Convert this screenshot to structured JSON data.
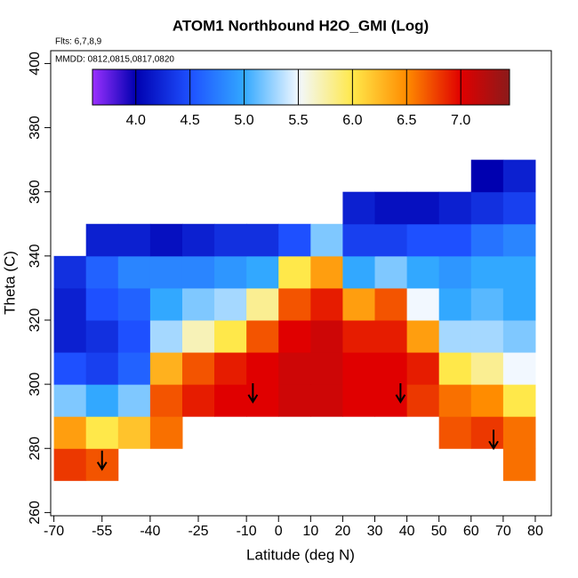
{
  "chart_data": {
    "type": "heatmap",
    "title": "ATOM1 Northbound H2O_GMI (Log)",
    "subtitle": "Flts: 6,7,8,9",
    "annotation": "MMDD: 0812,0815,0817,0820",
    "x_label": "Latitude (deg N)",
    "y_label": "Theta (C)",
    "xlim": [
      -71,
      85
    ],
    "ylim": [
      259,
      404
    ],
    "xticks": [
      -70,
      -55,
      -40,
      -25,
      -10,
      0,
      10,
      20,
      30,
      40,
      50,
      60,
      70,
      80
    ],
    "yticks": [
      260,
      280,
      300,
      320,
      340,
      360,
      380,
      400
    ],
    "x": [
      -65,
      -55,
      -45,
      -35,
      -25,
      -15,
      -5,
      5,
      15,
      25,
      35,
      45,
      55,
      65,
      75
    ],
    "y": [
      275,
      285,
      295,
      305,
      315,
      325,
      335,
      345,
      355,
      365
    ],
    "z": [
      [
        6.8,
        6.7,
        null,
        null,
        null,
        null,
        null,
        null,
        null,
        null,
        null,
        null,
        null,
        null,
        6.6
      ],
      [
        6.4,
        6.0,
        6.2,
        6.6,
        null,
        null,
        null,
        null,
        null,
        null,
        null,
        null,
        6.7,
        6.8,
        6.6
      ],
      [
        5.2,
        5.0,
        5.2,
        6.7,
        6.9,
        7.0,
        7.0,
        7.1,
        7.1,
        7.0,
        7.0,
        6.8,
        6.6,
        6.5,
        6.0
      ],
      [
        4.5,
        4.4,
        4.6,
        6.3,
        6.7,
        6.9,
        7.0,
        7.1,
        7.1,
        7.0,
        7.0,
        6.9,
        6.0,
        5.8,
        5.5
      ],
      [
        4.2,
        4.3,
        4.5,
        5.3,
        5.7,
        6.0,
        6.7,
        7.0,
        7.1,
        6.9,
        6.9,
        6.4,
        5.3,
        5.3,
        5.2
      ],
      [
        4.2,
        4.5,
        4.6,
        5.0,
        5.2,
        5.3,
        5.8,
        6.7,
        6.9,
        6.4,
        6.7,
        5.5,
        5.0,
        5.1,
        5.0
      ],
      [
        4.3,
        4.6,
        4.8,
        4.8,
        4.8,
        4.9,
        5.0,
        6.0,
        6.4,
        5.0,
        5.2,
        5.0,
        4.9,
        5.0,
        5.0
      ],
      [
        null,
        4.2,
        4.2,
        4.1,
        4.2,
        4.3,
        4.3,
        4.5,
        5.2,
        4.4,
        4.4,
        4.5,
        4.5,
        4.7,
        4.8
      ],
      [
        null,
        null,
        null,
        null,
        null,
        null,
        null,
        null,
        null,
        4.2,
        4.1,
        4.1,
        4.2,
        4.3,
        4.4
      ],
      [
        null,
        null,
        null,
        null,
        null,
        null,
        null,
        null,
        null,
        null,
        null,
        null,
        null,
        4.0,
        4.2
      ]
    ],
    "colorbar": {
      "lim": [
        3.6,
        7.45
      ],
      "ticks": [
        {
          "value": 4.0,
          "label": "4.0"
        },
        4.5,
        {
          "value": 5.0,
          "label": "5.0"
        },
        5.5,
        {
          "value": 6.0,
          "label": "6.0"
        },
        6.5,
        {
          "value": 7.0,
          "label": "7.0"
        }
      ]
    },
    "colorscale": [
      [
        3.6,
        "#9b30ff"
      ],
      [
        4.0,
        "#0000b0"
      ],
      [
        4.5,
        "#1e50ff"
      ],
      [
        5.0,
        "#32a8ff"
      ],
      [
        5.5,
        "#f2f8ff"
      ],
      [
        6.0,
        "#ffe84a"
      ],
      [
        6.5,
        "#ff8c00"
      ],
      [
        7.0,
        "#e00000"
      ],
      [
        7.45,
        "#8b1a1a"
      ]
    ],
    "arrows": {
      "x": [
        -55,
        -8,
        38,
        67
      ],
      "y": [
        273.5,
        294.5,
        294.5,
        280
      ]
    }
  }
}
